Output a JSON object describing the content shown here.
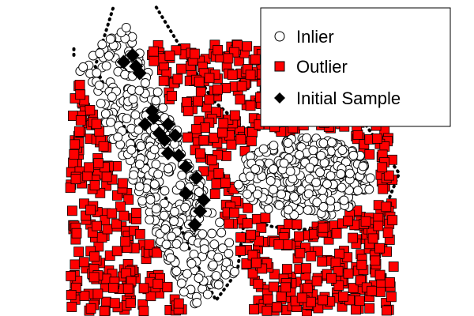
{
  "chart_data": {
    "type": "scatter",
    "title": "",
    "xlabel": "",
    "ylabel": "",
    "xlim": [
      0,
      10
    ],
    "ylim": [
      0,
      7
    ],
    "grid": false,
    "axes_visible": false,
    "legend": {
      "placement": "top-right",
      "entries": [
        "Inlier",
        "Outlier",
        "Initial Sample"
      ]
    },
    "series": [
      {
        "name": "Inlier",
        "marker": "open-circle",
        "color": "#000000",
        "region": {
          "band": {
            "from": [
              1.1,
              6.1
            ],
            "to": [
              4.3,
              0.6
            ],
            "halfwidth": 0.85
          },
          "blob": {
            "center": [
              6.8,
              3.1
            ],
            "radii": [
              1.9,
              0.9
            ]
          }
        },
        "count": 700
      },
      {
        "name": "Outlier",
        "marker": "square",
        "color": "#ff0000",
        "region": {
          "xlim": [
            0.2,
            9.3
          ],
          "ylim": [
            0.1,
            6.1
          ]
        },
        "count": 850
      },
      {
        "name": "Initial Sample",
        "marker": "diamond",
        "color": "#000000",
        "x": [
          1.7,
          2.05,
          1.95,
          2.15,
          2.5,
          2.3,
          2.7,
          2.55,
          2.85,
          2.95,
          3.15,
          2.95,
          3.25,
          3.45,
          3.75,
          3.45,
          3.95,
          3.85,
          3.7
        ],
        "y": [
          5.7,
          5.6,
          5.85,
          5.45,
          4.6,
          4.3,
          4.1,
          4.45,
          3.95,
          4.3,
          4.05,
          3.65,
          3.6,
          3.35,
          3.1,
          2.75,
          2.6,
          2.35,
          2.05
        ]
      }
    ],
    "boundary": {
      "style": "dotted",
      "color": "#000000",
      "segments": [
        [
          [
            1.4,
            6.9
          ],
          [
            0.9,
            5.6
          ],
          [
            1.6,
            4.4
          ],
          [
            2.5,
            3.2
          ],
          [
            3.2,
            2.2
          ],
          [
            3.6,
            1.4
          ],
          [
            4.3,
            0.35
          ],
          [
            4.9,
            1.0
          ],
          [
            5.1,
            2.2
          ],
          [
            5.9,
            2.0
          ],
          [
            7.5,
            1.9
          ],
          [
            9.0,
            2.3
          ],
          [
            9.45,
            3.2
          ],
          [
            8.5,
            4.3
          ],
          [
            7.0,
            4.55
          ],
          [
            5.1,
            4.2
          ],
          [
            4.2,
            4.85
          ],
          [
            3.4,
            5.9
          ],
          [
            2.6,
            6.95
          ]
        ],
        [
          [
            0.3,
            5.85
          ],
          [
            0.3,
            6.05
          ]
        ]
      ]
    }
  }
}
